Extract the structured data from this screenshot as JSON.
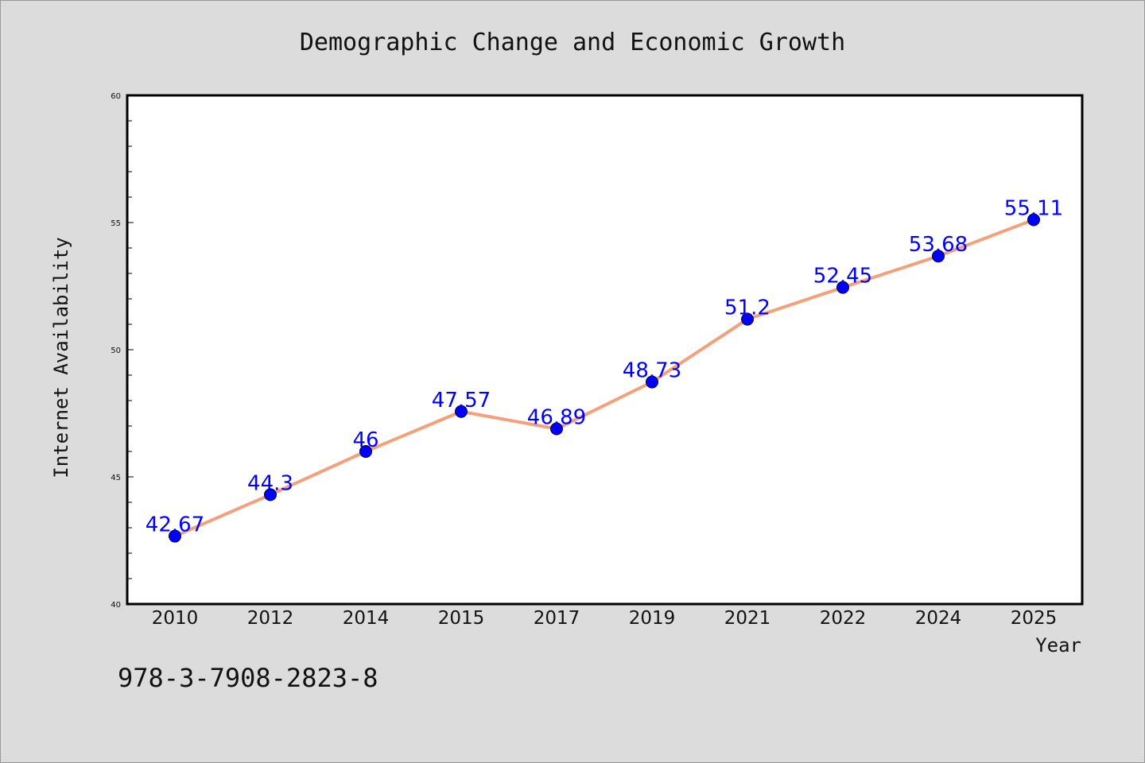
{
  "chart_data": {
    "type": "line",
    "title": "Demographic Change and Economic Growth",
    "xlabel": "Year",
    "ylabel": "Internet Availability",
    "categories": [
      "2010",
      "2012",
      "2014",
      "2015",
      "2017",
      "2019",
      "2021",
      "2022",
      "2024",
      "2025"
    ],
    "series": [
      {
        "values": [
          42.67,
          44.3,
          46,
          47.57,
          46.89,
          48.73,
          51.2,
          52.45,
          53.68,
          55.11
        ],
        "data_labels": [
          "42.67",
          "44.3",
          "46",
          "47.57",
          "46.89",
          "48.73",
          "51.2",
          "52.45",
          "53.68",
          "55.11"
        ],
        "line_color": "#f4a07a",
        "marker_color": "#0000ff",
        "label_color": "#0000ff"
      }
    ],
    "ylim": [
      40,
      60
    ],
    "yticks": [
      "40",
      "45",
      "50",
      "55",
      "60"
    ],
    "y_minor_step": 1,
    "grid": false,
    "legend": false
  },
  "footer": {
    "isbn": "978-3-7908-2823-8"
  },
  "colors": {
    "background": "#dcdcdc",
    "plot_background": "#ffffff"
  }
}
